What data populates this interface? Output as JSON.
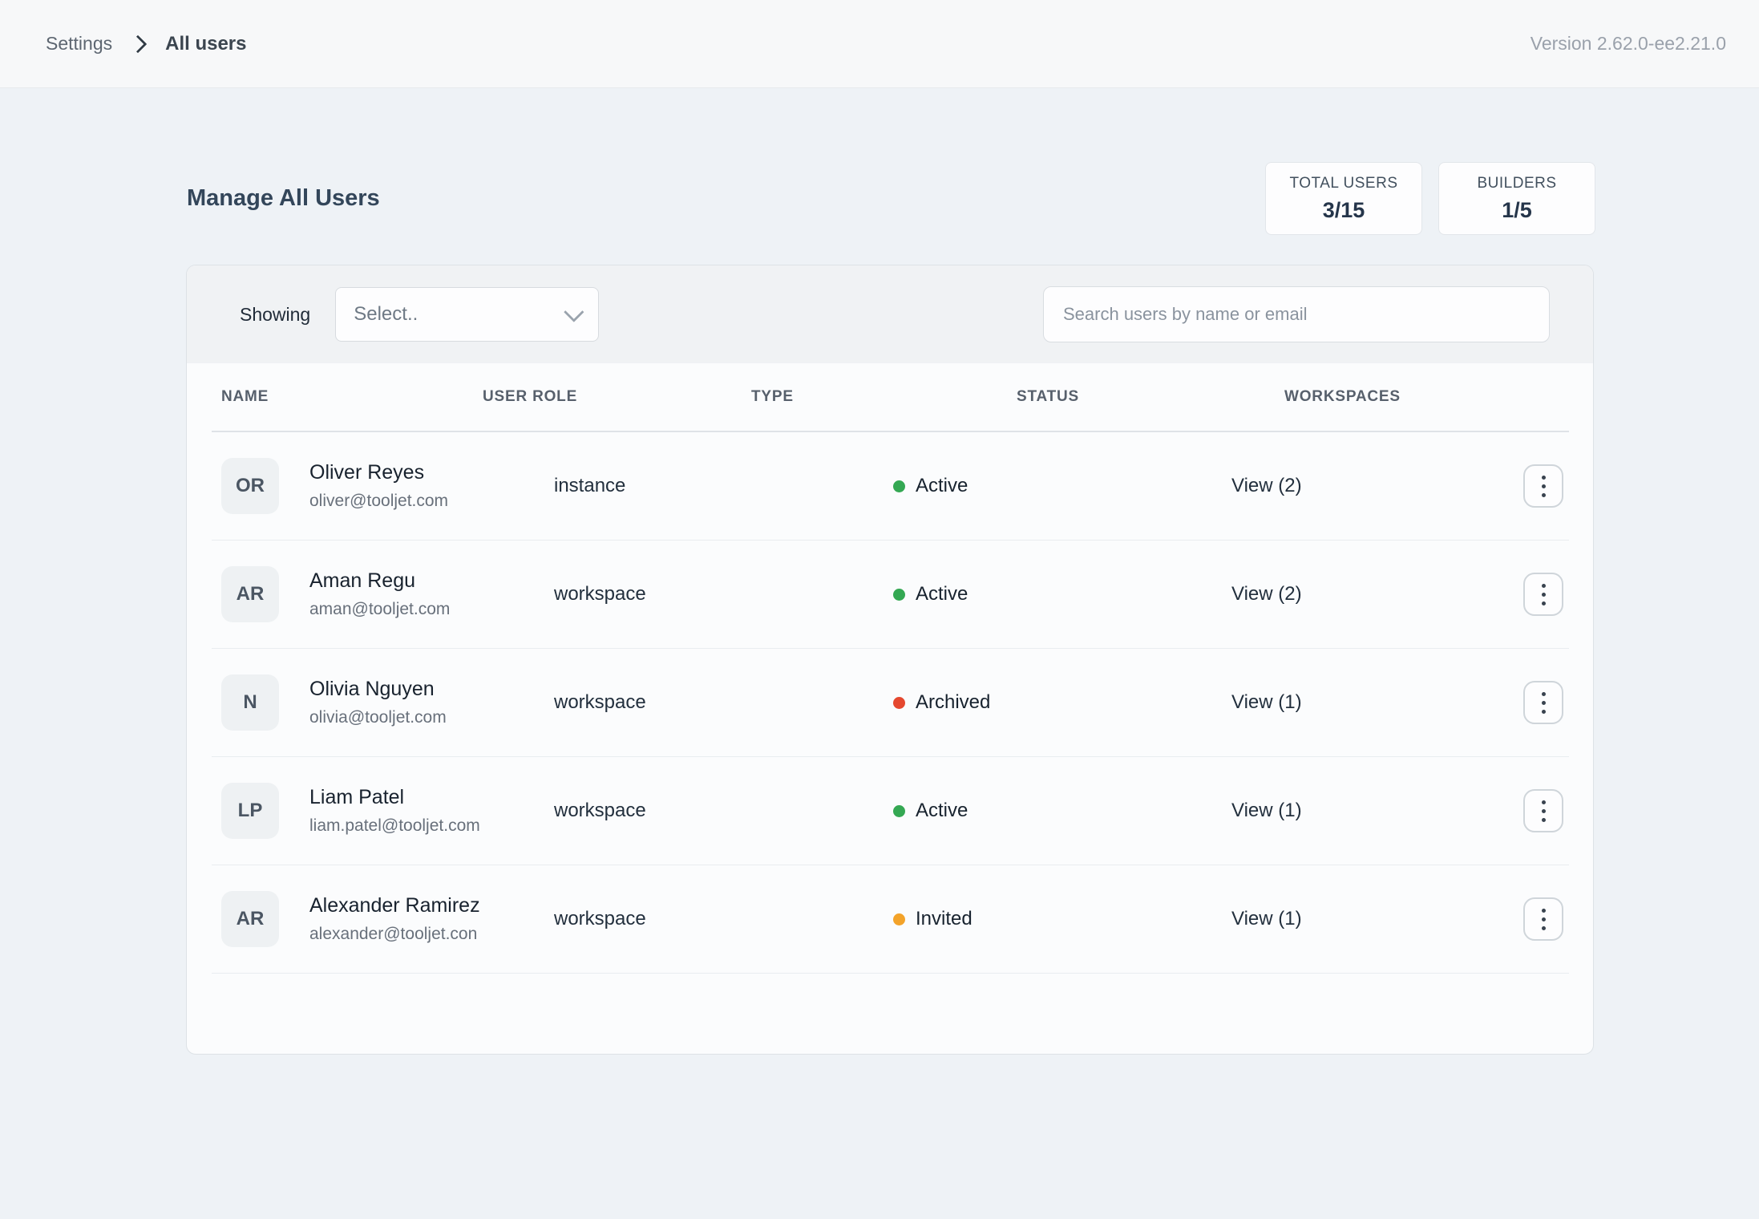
{
  "topbar": {
    "breadcrumb": {
      "section": "Settings",
      "page": "All users"
    },
    "version": "Version 2.62.0-ee2.21.0"
  },
  "header": {
    "title": "Manage All Users",
    "stats": [
      {
        "label": "TOTAL USERS",
        "value": "3/15"
      },
      {
        "label": "BUILDERS",
        "value": "1/5"
      }
    ]
  },
  "filters": {
    "showing_label": "Showing",
    "select_value": "Select..",
    "search_placeholder": "Search users by name or email"
  },
  "icons": {
    "breadcrumb_separator": "chevron-right",
    "select_dropdown": "chevron-down",
    "row_actions": "kebab-menu",
    "status_indicator": "dot"
  },
  "colors": {
    "status_active": "#34a853",
    "status_archived": "#e5482f",
    "status_invited": "#f3a32a",
    "accent_dark": "#33465a",
    "page_background": "#eef2f6"
  },
  "table": {
    "columns": [
      "NAME",
      "USER ROLE",
      "TYPE",
      "STATUS",
      "WORKSPACES"
    ],
    "rows": [
      {
        "initials": "OR",
        "name": "Oliver Reyes",
        "email": "oliver@tooljet.com",
        "role": "instance",
        "status": "Active",
        "status_color": "#34a853",
        "workspaces": "View (2)"
      },
      {
        "initials": "AR",
        "name": "Aman Regu",
        "email": "aman@tooljet.com",
        "role": "workspace",
        "status": "Active",
        "status_color": "#34a853",
        "workspaces": "View (2)"
      },
      {
        "initials": "N",
        "name": "Olivia Nguyen",
        "email": "olivia@tooljet.com",
        "role": "workspace",
        "status": "Archived",
        "status_color": "#e5482f",
        "workspaces": "View (1)"
      },
      {
        "initials": "LP",
        "name": "Liam Patel",
        "email": "liam.patel@tooljet.com",
        "role": "workspace",
        "status": "Active",
        "status_color": "#34a853",
        "workspaces": "View (1)"
      },
      {
        "initials": "AR",
        "name": "Alexander Ramirez",
        "email": "alexander@tooljet.con",
        "role": "workspace",
        "status": "Invited",
        "status_color": "#f3a32a",
        "workspaces": "View (1)"
      }
    ]
  }
}
